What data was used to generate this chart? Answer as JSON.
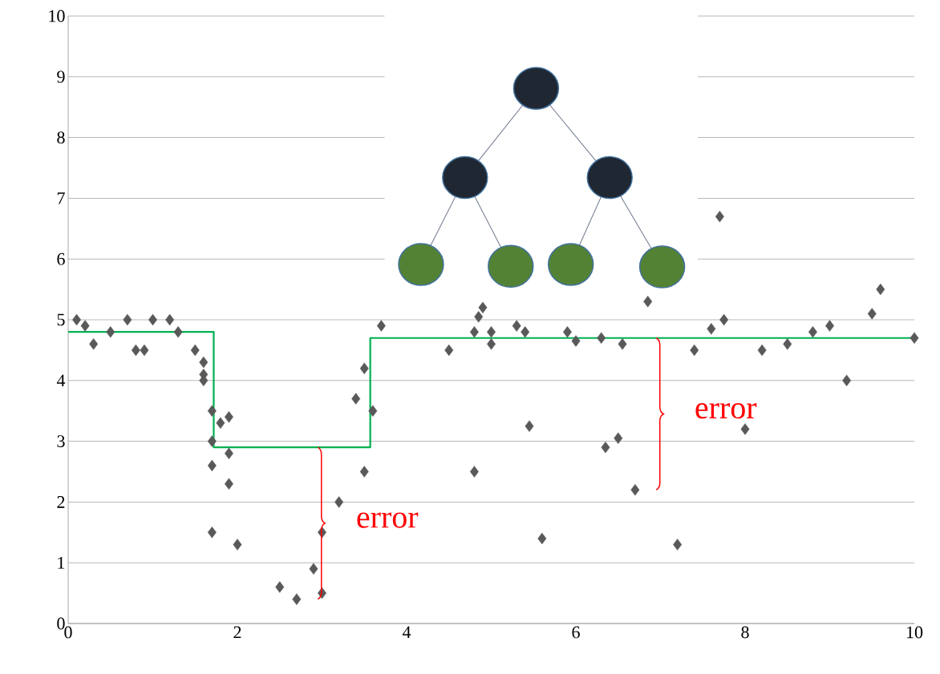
{
  "chart_data": {
    "type": "scatter",
    "xlim": [
      0,
      10
    ],
    "ylim": [
      0,
      10
    ],
    "xticks": [
      0,
      2,
      4,
      6,
      8,
      10
    ],
    "yticks": [
      0,
      1,
      2,
      3,
      4,
      5,
      6,
      7,
      8,
      9,
      10
    ],
    "grid": "y",
    "marker": "diamond",
    "series": [
      {
        "color": "#595959",
        "x": [
          0.1,
          0.2,
          0.3,
          0.5,
          0.7,
          0.8,
          0.9,
          1.0,
          1.2,
          1.3,
          1.5,
          1.6,
          1.6,
          1.6,
          1.7,
          1.7,
          1.7,
          1.7,
          1.8,
          1.9,
          1.9,
          1.9,
          2.0,
          2.5,
          2.7,
          2.9,
          3.0,
          3.0,
          3.2,
          3.4,
          3.5,
          3.5,
          3.6,
          3.7,
          4.5,
          4.8,
          4.85,
          4.9,
          4.8,
          5.0,
          5.0,
          5.3,
          5.4,
          5.45,
          5.6,
          5.9,
          6.0,
          6.3,
          6.35,
          6.5,
          6.55,
          6.7,
          6.85,
          7.2,
          7.4,
          7.6,
          7.7,
          7.75,
          8.0,
          8.2,
          8.5,
          8.8,
          9.0,
          9.2,
          9.5,
          9.6,
          10.0
        ],
        "values": [
          5.0,
          4.9,
          4.6,
          4.8,
          5.0,
          4.5,
          4.5,
          5.0,
          5.0,
          4.8,
          4.5,
          4.3,
          4.1,
          4.0,
          3.5,
          3.0,
          2.6,
          1.5,
          3.3,
          3.4,
          2.8,
          2.3,
          1.3,
          0.6,
          0.4,
          0.9,
          1.5,
          0.5,
          2.0,
          3.7,
          4.2,
          2.5,
          3.5,
          4.9,
          4.5,
          4.8,
          5.05,
          5.2,
          2.5,
          4.8,
          4.6,
          4.9,
          4.8,
          3.25,
          1.4,
          4.8,
          4.65,
          4.7,
          2.9,
          3.05,
          4.6,
          2.2,
          5.3,
          1.3,
          4.5,
          4.85,
          6.7,
          5.0,
          3.2,
          4.5,
          4.6,
          4.8,
          4.9,
          4.0,
          5.1,
          5.5,
          4.7
        ]
      },
      {
        "type": "step",
        "color": "#00b050",
        "marker": "none",
        "x": [
          0,
          1.72,
          3.57,
          10
        ],
        "values": [
          4.8,
          2.9,
          4.7,
          4.7
        ]
      }
    ],
    "annotations": [
      {
        "text": "error",
        "x": 2.7,
        "y": 0.4
      },
      {
        "text": "error",
        "x": 6.7,
        "y": 2.2
      }
    ]
  }
}
